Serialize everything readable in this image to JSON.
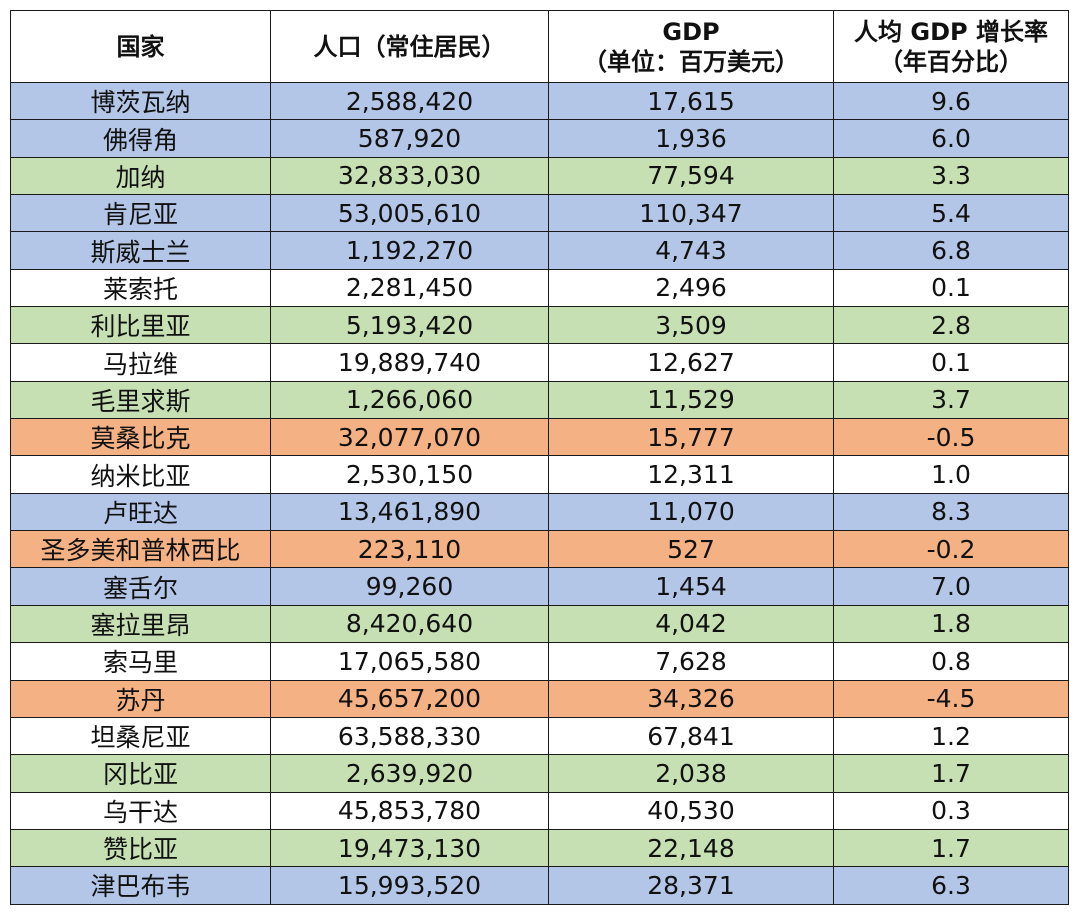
{
  "colors": {
    "blue": "#b4c6e7",
    "green": "#c6e0b4",
    "orange": "#f4b183",
    "white": "#ffffff"
  },
  "headers": {
    "country": "国家",
    "population": "人口（常住居民）",
    "gdp_line1": "GDP",
    "gdp_line2": "（单位：百万美元）",
    "growth_line1": "人均 GDP 增长率",
    "growth_line2": "（年百分比）"
  },
  "rows": [
    {
      "country": "博茨瓦纳",
      "population": "2,588,420",
      "gdp": "17,615",
      "growth": "9.6",
      "color": "blue"
    },
    {
      "country": "佛得角",
      "population": "587,920",
      "gdp": "1,936",
      "growth": "6.0",
      "color": "blue"
    },
    {
      "country": "加纳",
      "population": "32,833,030",
      "gdp": "77,594",
      "growth": "3.3",
      "color": "green"
    },
    {
      "country": "肯尼亚",
      "population": "53,005,610",
      "gdp": "110,347",
      "growth": "5.4",
      "color": "blue"
    },
    {
      "country": "斯威士兰",
      "population": "1,192,270",
      "gdp": "4,743",
      "growth": "6.8",
      "color": "blue"
    },
    {
      "country": "莱索托",
      "population": "2,281,450",
      "gdp": "2,496",
      "growth": "0.1",
      "color": "white"
    },
    {
      "country": "利比里亚",
      "population": "5,193,420",
      "gdp": "3,509",
      "growth": "2.8",
      "color": "green"
    },
    {
      "country": "马拉维",
      "population": "19,889,740",
      "gdp": "12,627",
      "growth": "0.1",
      "color": "white"
    },
    {
      "country": "毛里求斯",
      "population": "1,266,060",
      "gdp": "11,529",
      "growth": "3.7",
      "color": "green"
    },
    {
      "country": "莫桑比克",
      "population": "32,077,070",
      "gdp": "15,777",
      "growth": "-0.5",
      "color": "orange"
    },
    {
      "country": "纳米比亚",
      "population": "2,530,150",
      "gdp": "12,311",
      "growth": "1.0",
      "color": "white"
    },
    {
      "country": "卢旺达",
      "population": "13,461,890",
      "gdp": "11,070",
      "growth": "8.3",
      "color": "blue"
    },
    {
      "country": "圣多美和普林西比",
      "population": "223,110",
      "gdp": "527",
      "growth": "-0.2",
      "color": "orange"
    },
    {
      "country": "塞舌尔",
      "population": "99,260",
      "gdp": "1,454",
      "growth": "7.0",
      "color": "blue"
    },
    {
      "country": "塞拉里昂",
      "population": "8,420,640",
      "gdp": "4,042",
      "growth": "1.8",
      "color": "green"
    },
    {
      "country": "索马里",
      "population": "17,065,580",
      "gdp": "7,628",
      "growth": "0.8",
      "color": "white"
    },
    {
      "country": "苏丹",
      "population": "45,657,200",
      "gdp": "34,326",
      "growth": "-4.5",
      "color": "orange"
    },
    {
      "country": "坦桑尼亚",
      "population": "63,588,330",
      "gdp": "67,841",
      "growth": "1.2",
      "color": "white"
    },
    {
      "country": "冈比亚",
      "population": "2,639,920",
      "gdp": "2,038",
      "growth": "1.7",
      "color": "green"
    },
    {
      "country": "乌干达",
      "population": "45,853,780",
      "gdp": "40,530",
      "growth": "0.3",
      "color": "white"
    },
    {
      "country": "赞比亚",
      "population": "19,473,130",
      "gdp": "22,148",
      "growth": "1.7",
      "color": "green"
    },
    {
      "country": "津巴布韦",
      "population": "15,993,520",
      "gdp": "28,371",
      "growth": "6.3",
      "color": "blue"
    }
  ]
}
